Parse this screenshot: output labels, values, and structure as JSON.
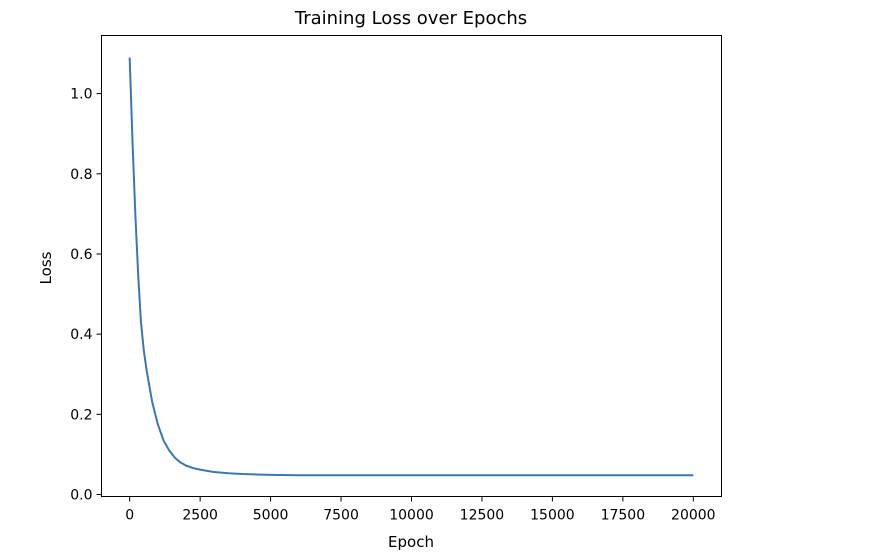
{
  "chart_data": {
    "type": "line",
    "title": "Training Loss over Epochs",
    "xlabel": "Epoch",
    "ylabel": "Loss",
    "xlim": [
      -1000,
      21000
    ],
    "ylim": [
      -0.005,
      1.145
    ],
    "x_ticks": [
      0,
      2500,
      5000,
      7500,
      10000,
      12500,
      15000,
      17500,
      20000
    ],
    "y_ticks": [
      0.0,
      0.2,
      0.4,
      0.6,
      0.8,
      1.0
    ],
    "x_tick_labels": [
      "0",
      "2500",
      "5000",
      "7500",
      "10000",
      "12500",
      "15000",
      "17500",
      "20000"
    ],
    "y_tick_labels": [
      "0.0",
      "0.2",
      "0.4",
      "0.6",
      "0.8",
      "1.0"
    ],
    "grid": false,
    "legend": false,
    "line_color": "#3a78b5",
    "series": [
      {
        "x": [
          0,
          100,
          200,
          300,
          400,
          500,
          600,
          700,
          800,
          1000,
          1200,
          1400,
          1600,
          1800,
          2000,
          2250,
          2500,
          2750,
          3000,
          3500,
          4000,
          4500,
          5000,
          6000,
          7000,
          8000,
          10000,
          12500,
          15000,
          17500,
          20000
        ],
        "y": [
          1.09,
          0.88,
          0.7,
          0.55,
          0.43,
          0.36,
          0.31,
          0.27,
          0.23,
          0.175,
          0.135,
          0.11,
          0.092,
          0.08,
          0.072,
          0.066,
          0.062,
          0.059,
          0.056,
          0.053,
          0.051,
          0.05,
          0.049,
          0.048,
          0.048,
          0.048,
          0.048,
          0.048,
          0.048,
          0.048,
          0.048
        ]
      }
    ]
  }
}
